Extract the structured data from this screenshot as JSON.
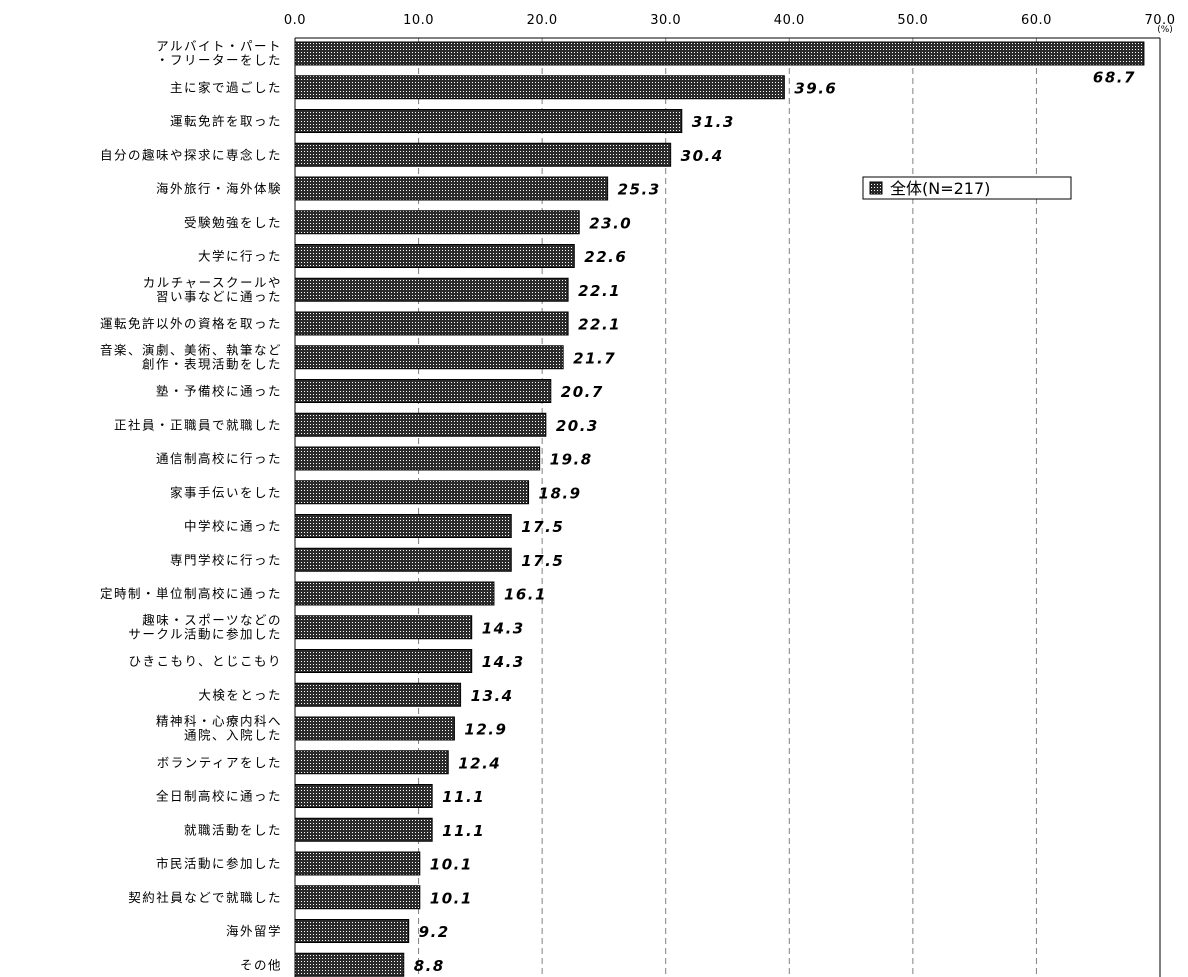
{
  "chart_data": {
    "type": "bar",
    "orientation": "horizontal",
    "categories": [
      [
        "アルバイト・パート",
        "・フリーターをした"
      ],
      [
        "主に家で過ごした"
      ],
      [
        "運転免許を取った"
      ],
      [
        "自分の趣味や探求に専念した"
      ],
      [
        "海外旅行・海外体験"
      ],
      [
        "受験勉強をした"
      ],
      [
        "大学に行った"
      ],
      [
        "カルチャースクールや",
        "習い事などに通った"
      ],
      [
        "運転免許以外の資格を取った"
      ],
      [
        "音楽、演劇、美術、執筆など",
        "創作・表現活動をした"
      ],
      [
        "塾・予備校に通った"
      ],
      [
        "正社員・正職員で就職した"
      ],
      [
        "通信制高校に行った"
      ],
      [
        "家事手伝いをした"
      ],
      [
        "中学校に通った"
      ],
      [
        "専門学校に行った"
      ],
      [
        "定時制・単位制高校に通った"
      ],
      [
        "趣味・スポーツなどの",
        "サークル活動に参加した"
      ],
      [
        "ひきこもり、とじこもり"
      ],
      [
        "大検をとった"
      ],
      [
        "精神科・心療内科へ",
        "通院、入院した"
      ],
      [
        "ボランティアをした"
      ],
      [
        "全日制高校に通った"
      ],
      [
        "就職活動をした"
      ],
      [
        "市民活動に参加した"
      ],
      [
        "契約社員などで就職した"
      ],
      [
        "海外留学"
      ],
      [
        "その他"
      ]
    ],
    "series": [
      {
        "name": "全体(N=217)",
        "values": [
          68.7,
          39.6,
          31.3,
          30.4,
          25.3,
          23.0,
          22.6,
          22.1,
          22.1,
          21.7,
          20.7,
          20.3,
          19.8,
          18.9,
          17.5,
          17.5,
          16.1,
          14.3,
          14.3,
          13.4,
          12.9,
          12.4,
          11.1,
          11.1,
          10.1,
          10.1,
          9.2,
          8.8
        ]
      }
    ],
    "value_labels": [
      "68.7",
      "39.6",
      "31.3",
      "30.4",
      "25.3",
      "23.0",
      "22.6",
      "22.1",
      "22.1",
      "21.7",
      "20.7",
      "20.3",
      "19.8",
      "18.9",
      "17.5",
      "17.5",
      "16.1",
      "14.3",
      "14.3",
      "13.4",
      "12.9",
      "12.4",
      "11.1",
      "11.1",
      "10.1",
      "10.1",
      "9.2",
      "8.8"
    ],
    "xlim": [
      0,
      70
    ],
    "xticks": [
      0,
      10,
      20,
      30,
      40,
      50,
      60,
      70
    ],
    "xtick_labels": [
      "0.0",
      "10.0",
      "20.0",
      "30.0",
      "40.0",
      "50.0",
      "60.0",
      "70.0"
    ],
    "x_unit": "(%)",
    "axis_position": "top",
    "grid": "vertical dashed",
    "legend": {
      "placement": "right-upper",
      "entries": [
        "全体(N=217)"
      ]
    },
    "colors": {
      "bar_fill": "#2b2b2b",
      "bar_dots": "#ffffff",
      "grid": "#808080",
      "axis": "#000000"
    }
  }
}
